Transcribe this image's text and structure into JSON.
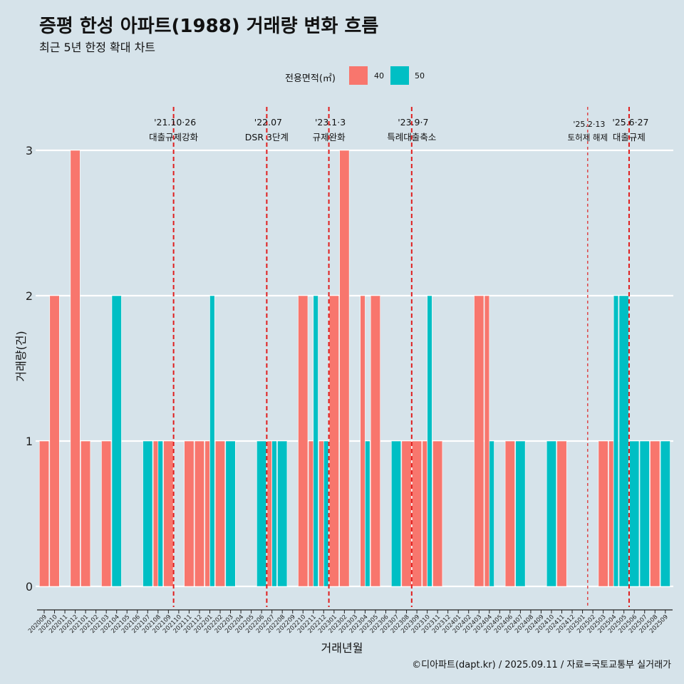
{
  "header": {
    "title": "증평 한성 아파트(1988) 거래량 변화 흐름",
    "subtitle": "최근 5년 한정 확대 차트"
  },
  "legend": {
    "title": "전용면적(㎡)",
    "items": [
      {
        "label": "40",
        "color": "#f8766d"
      },
      {
        "label": "50",
        "color": "#00bfc4"
      }
    ]
  },
  "caption": "©디아파트(dapt.kr) / 2025.09.11 / 자료=국토교통부 실거래가",
  "chart_data": {
    "type": "bar",
    "xlabel": "거래년월",
    "ylabel": "거래량(건)",
    "ylim": [
      0,
      3
    ],
    "yticks": [
      0,
      1,
      2,
      3
    ],
    "grid": true,
    "legend_position": "top",
    "categories": [
      "202009",
      "202010",
      "202011",
      "202012",
      "202101",
      "202102",
      "202103",
      "202104",
      "202105",
      "202106",
      "202107",
      "202108",
      "202109",
      "202110",
      "202111",
      "202112",
      "202201",
      "202202",
      "202203",
      "202204",
      "202205",
      "202206",
      "202207",
      "202208",
      "202209",
      "202210",
      "202211",
      "202212",
      "202301",
      "202302",
      "202303",
      "202304",
      "202305",
      "202306",
      "202307",
      "202308",
      "202309",
      "202310",
      "202311",
      "202312",
      "202401",
      "202402",
      "202403",
      "202404",
      "202405",
      "202406",
      "202407",
      "202408",
      "202409",
      "202410",
      "202411",
      "202412",
      "202501",
      "202502",
      "202503",
      "202504",
      "202505",
      "202506",
      "202507",
      "202508",
      "202509"
    ],
    "bars": [
      {
        "month": "202009",
        "group": 0,
        "n": 1,
        "area": "40",
        "value": 1
      },
      {
        "month": "202010",
        "group": 0,
        "n": 1,
        "area": "40",
        "value": 2
      },
      {
        "month": "202012",
        "group": 0,
        "n": 1,
        "area": "40",
        "value": 3
      },
      {
        "month": "202101",
        "group": 0,
        "n": 1,
        "area": "40",
        "value": 1
      },
      {
        "month": "202103",
        "group": 0,
        "n": 1,
        "area": "40",
        "value": 1
      },
      {
        "month": "202104",
        "group": 0,
        "n": 1,
        "area": "50",
        "value": 2
      },
      {
        "month": "202107",
        "group": 0,
        "n": 1,
        "area": "50",
        "value": 1
      },
      {
        "month": "202108",
        "group": 0,
        "n": 2,
        "area": "40",
        "value": 1
      },
      {
        "month": "202108",
        "group": 1,
        "n": 2,
        "area": "50",
        "value": 1
      },
      {
        "month": "202109",
        "group": 0,
        "n": 1,
        "area": "40",
        "value": 1
      },
      {
        "month": "202111",
        "group": 0,
        "n": 1,
        "area": "40",
        "value": 1
      },
      {
        "month": "202112",
        "group": 0,
        "n": 1,
        "area": "40",
        "value": 1
      },
      {
        "month": "202201",
        "group": 0,
        "n": 2,
        "area": "40",
        "value": 1
      },
      {
        "month": "202201",
        "group": 1,
        "n": 2,
        "area": "50",
        "value": 2
      },
      {
        "month": "202202",
        "group": 0,
        "n": 1,
        "area": "40",
        "value": 1
      },
      {
        "month": "202203",
        "group": 0,
        "n": 1,
        "area": "50",
        "value": 1
      },
      {
        "month": "202206",
        "group": 0,
        "n": 1,
        "area": "50",
        "value": 1
      },
      {
        "month": "202207",
        "group": 0,
        "n": 2,
        "area": "40",
        "value": 1
      },
      {
        "month": "202207",
        "group": 1,
        "n": 2,
        "area": "50",
        "value": 1
      },
      {
        "month": "202208",
        "group": 0,
        "n": 1,
        "area": "50",
        "value": 1
      },
      {
        "month": "202210",
        "group": 0,
        "n": 1,
        "area": "40",
        "value": 2
      },
      {
        "month": "202211",
        "group": 0,
        "n": 2,
        "area": "40",
        "value": 1
      },
      {
        "month": "202211",
        "group": 1,
        "n": 2,
        "area": "50",
        "value": 2
      },
      {
        "month": "202212",
        "group": 0,
        "n": 2,
        "area": "40",
        "value": 1
      },
      {
        "month": "202212",
        "group": 1,
        "n": 2,
        "area": "50",
        "value": 1
      },
      {
        "month": "202301",
        "group": 0,
        "n": 1,
        "area": "40",
        "value": 2
      },
      {
        "month": "202302",
        "group": 0,
        "n": 1,
        "area": "40",
        "value": 3
      },
      {
        "month": "202304",
        "group": 0,
        "n": 2,
        "area": "40",
        "value": 2
      },
      {
        "month": "202304",
        "group": 1,
        "n": 2,
        "area": "50",
        "value": 1
      },
      {
        "month": "202305",
        "group": 0,
        "n": 1,
        "area": "40",
        "value": 2
      },
      {
        "month": "202307",
        "group": 0,
        "n": 1,
        "area": "50",
        "value": 1
      },
      {
        "month": "202308",
        "group": 0,
        "n": 1,
        "area": "40",
        "value": 1
      },
      {
        "month": "202309",
        "group": 0,
        "n": 1,
        "area": "40",
        "value": 1
      },
      {
        "month": "202310",
        "group": 0,
        "n": 2,
        "area": "40",
        "value": 1
      },
      {
        "month": "202310",
        "group": 1,
        "n": 2,
        "area": "50",
        "value": 2
      },
      {
        "month": "202311",
        "group": 0,
        "n": 1,
        "area": "40",
        "value": 1
      },
      {
        "month": "202403",
        "group": 0,
        "n": 1,
        "area": "40",
        "value": 2
      },
      {
        "month": "202404",
        "group": 0,
        "n": 2,
        "area": "40",
        "value": 2
      },
      {
        "month": "202404",
        "group": 1,
        "n": 2,
        "area": "50",
        "value": 1
      },
      {
        "month": "202406",
        "group": 0,
        "n": 1,
        "area": "40",
        "value": 1
      },
      {
        "month": "202407",
        "group": 0,
        "n": 1,
        "area": "50",
        "value": 1
      },
      {
        "month": "202410",
        "group": 0,
        "n": 1,
        "area": "50",
        "value": 1
      },
      {
        "month": "202411",
        "group": 0,
        "n": 1,
        "area": "40",
        "value": 1
      },
      {
        "month": "202503",
        "group": 0,
        "n": 1,
        "area": "40",
        "value": 1
      },
      {
        "month": "202504",
        "group": 0,
        "n": 2,
        "area": "40",
        "value": 1
      },
      {
        "month": "202504",
        "group": 1,
        "n": 2,
        "area": "50",
        "value": 2
      },
      {
        "month": "202505",
        "group": 0,
        "n": 1,
        "area": "50",
        "value": 2
      },
      {
        "month": "202506",
        "group": 0,
        "n": 1,
        "area": "50",
        "value": 1
      },
      {
        "month": "202507",
        "group": 0,
        "n": 1,
        "area": "50",
        "value": 1
      },
      {
        "month": "202508",
        "group": 0,
        "n": 1,
        "area": "40",
        "value": 1
      },
      {
        "month": "202509",
        "group": 0,
        "n": 1,
        "area": "50",
        "value": 1
      }
    ],
    "annotations": [
      {
        "position": "202110",
        "date": "'21.10·26",
        "label": "대출규제강화",
        "style": "thick"
      },
      {
        "position": "202207",
        "date": "'22.07",
        "label": "DSR 3단계",
        "style": "thick"
      },
      {
        "position": "202301",
        "date": "'23.1·3",
        "label": "규제완화",
        "style": "thick"
      },
      {
        "position": "202309",
        "date": "'23.9·7",
        "label": "특례대출축소",
        "style": "thick"
      },
      {
        "position": "202502",
        "date": "'25.2·13",
        "label": "토허제 해제",
        "style": "thin"
      },
      {
        "position": "202506",
        "date": "'25.6·27",
        "label": "대출규제",
        "style": "thick"
      }
    ]
  }
}
